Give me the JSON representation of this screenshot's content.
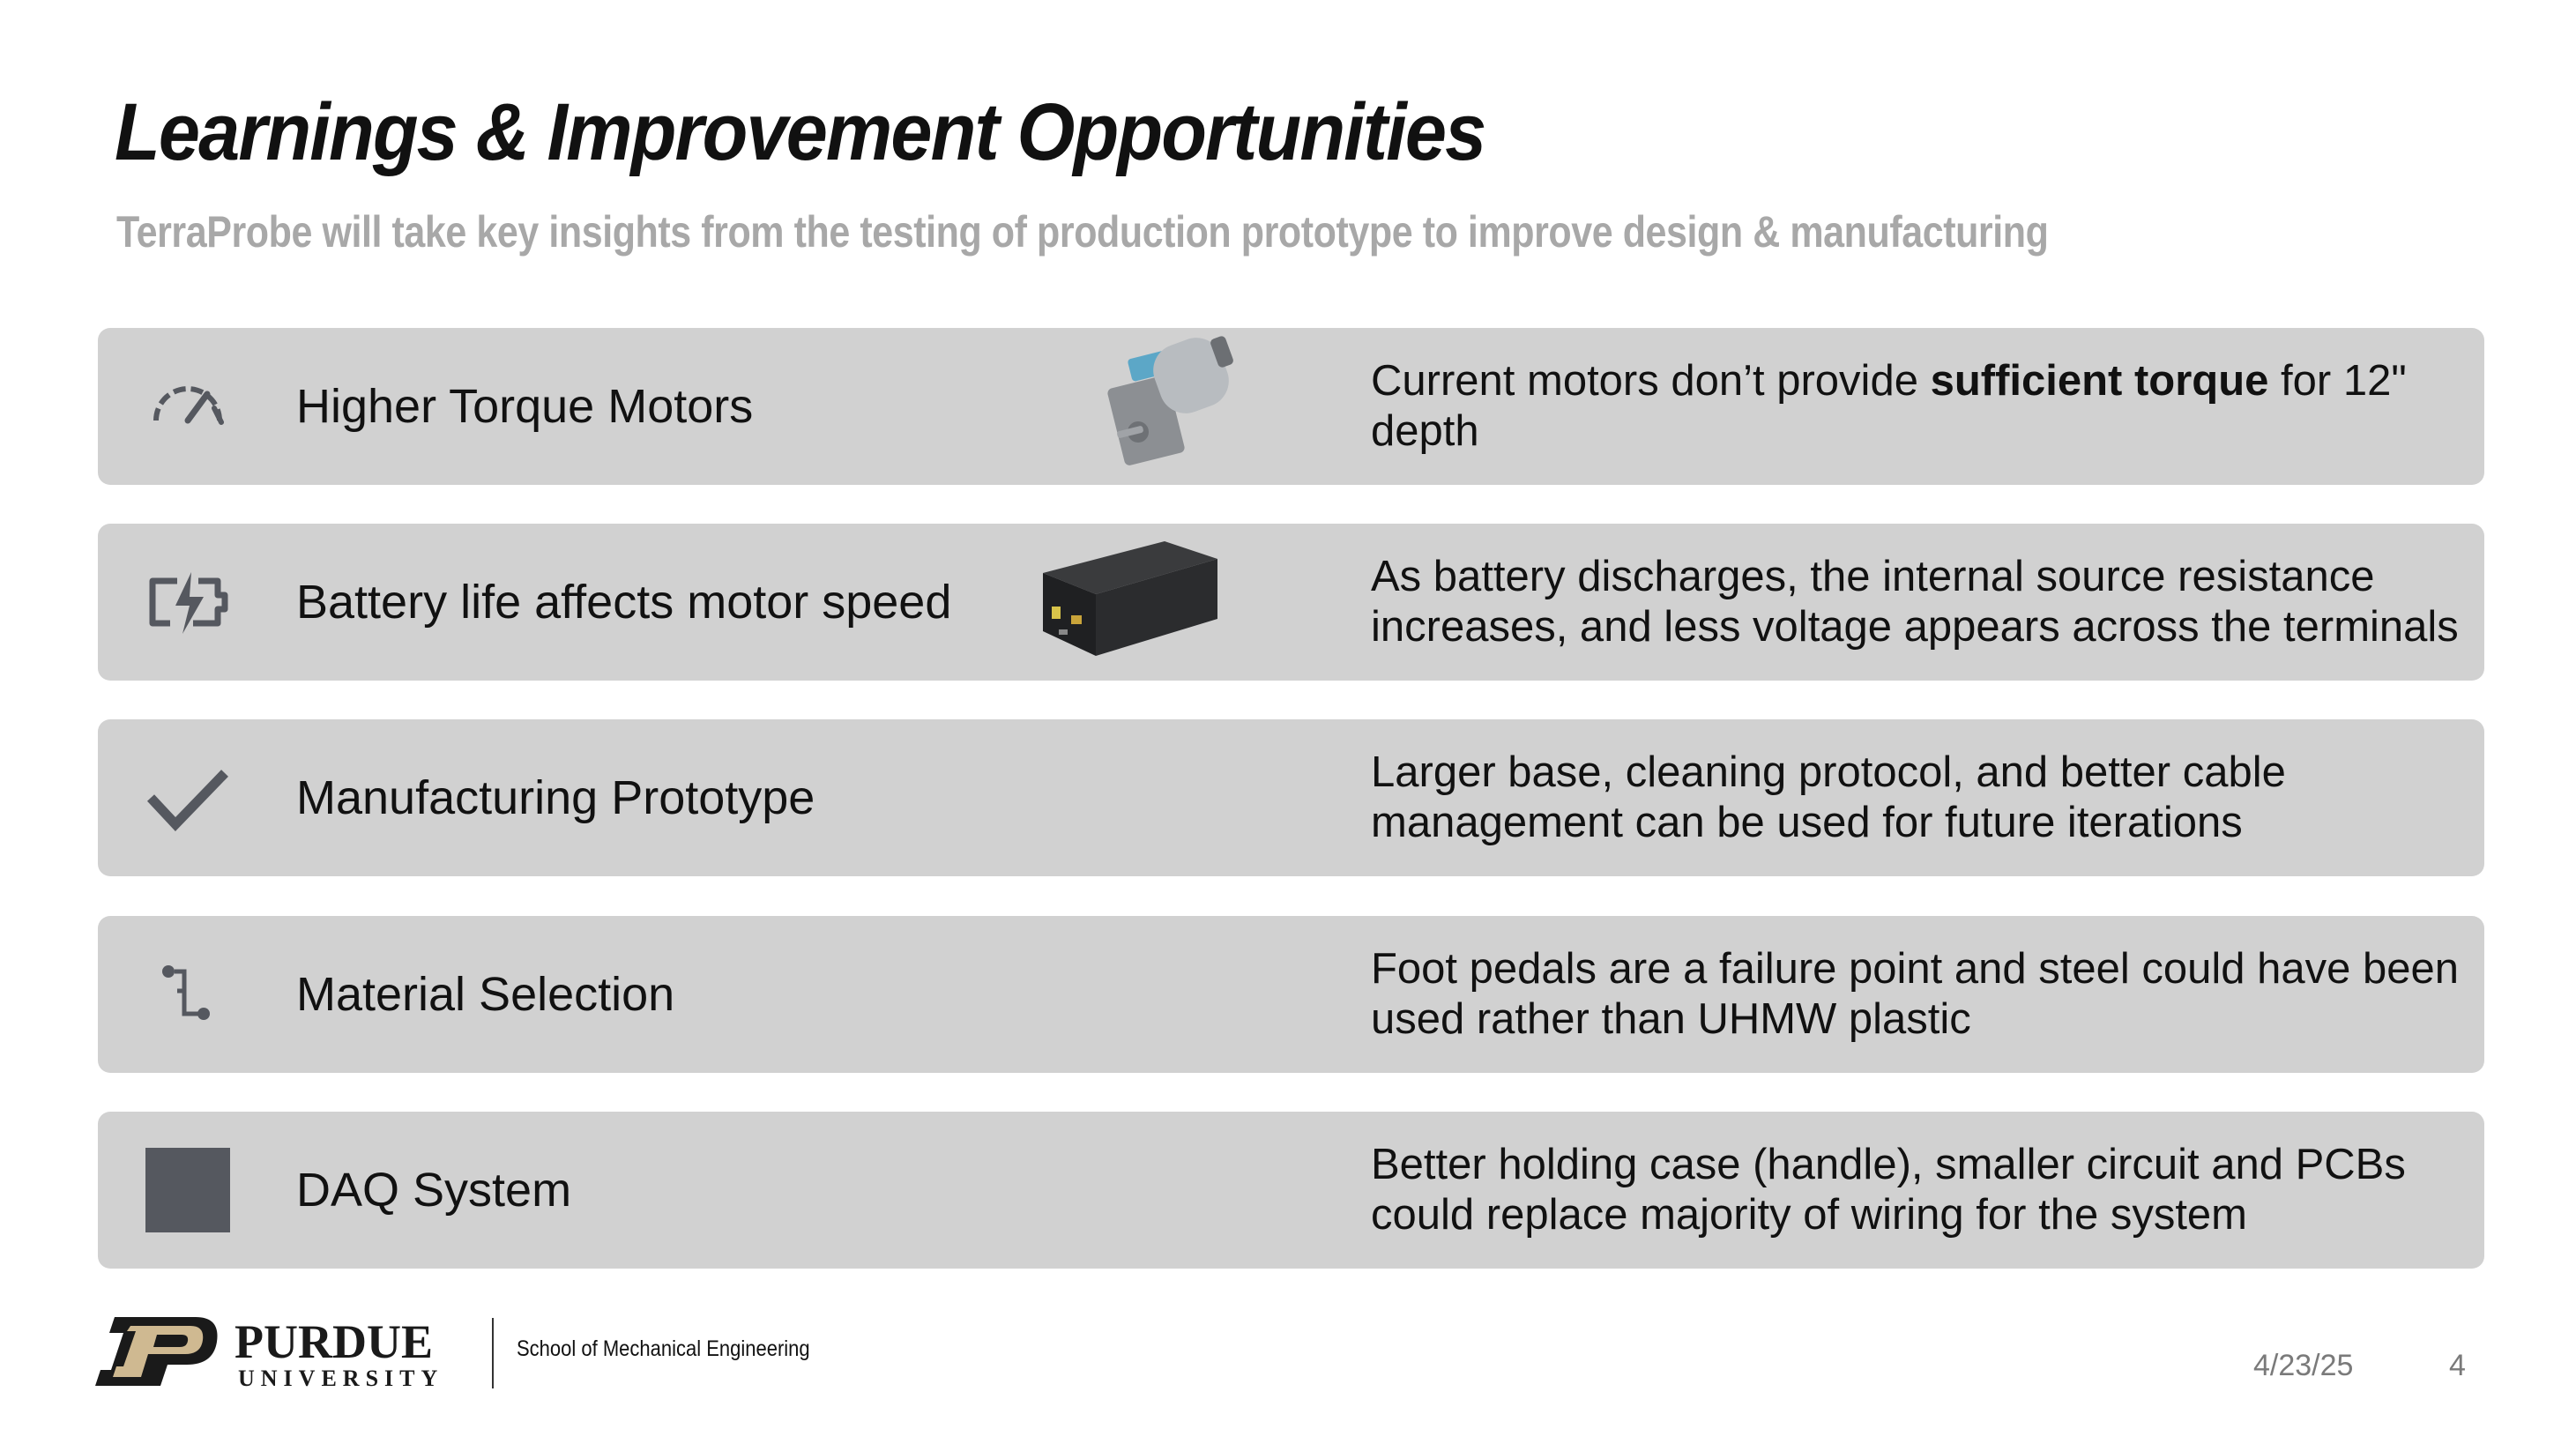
{
  "slide": {
    "title": "Learnings & Improvement Opportunities",
    "subtitle": "TerraProbe will take key insights from the testing of production prototype to improve design & manufacturing"
  },
  "rows": [
    {
      "label": "Higher Torque Motors",
      "icon": "speedometer-icon",
      "image": "gear-motor-photo",
      "desc_before": "Current motors don’t provide ",
      "desc_bold": "sufficient torque",
      "desc_after": " for 12\" depth"
    },
    {
      "label": "Battery life affects motor speed",
      "icon": "battery-charging-icon",
      "image": "battery-pack-photo",
      "desc_line1": "As battery discharges, the internal source resistance",
      "desc_line2": "increases, and less voltage appears across the terminals"
    },
    {
      "label": "Manufacturing Prototype",
      "icon": "checkmark-icon",
      "desc_line1": "Larger base, cleaning protocol, and better cable",
      "desc_line2": "management can be used for future iterations"
    },
    {
      "label": "Material Selection",
      "icon": "flow-steps-icon",
      "desc_line1": "Foot pedals are a failure point and steel could have been",
      "desc_line2": "used rather than UHMW plastic"
    },
    {
      "label": "DAQ System",
      "icon": "square-icon",
      "desc_line1": "Better holding case (handle), smaller circuit and PCBs",
      "desc_line2": "could replace majority of wiring for the system"
    }
  ],
  "footer": {
    "logo_wordmark": "PURDUE",
    "logo_sub": "UNIVERSITY",
    "school": "School of Mechanical Engineering",
    "date": "4/23/25",
    "page": "4"
  },
  "colors": {
    "row_bg": "#d1d1d1",
    "icon_gray": "#55585f",
    "subtitle_gray": "#a8a8a8",
    "purdue_gold": "#cfb991"
  }
}
